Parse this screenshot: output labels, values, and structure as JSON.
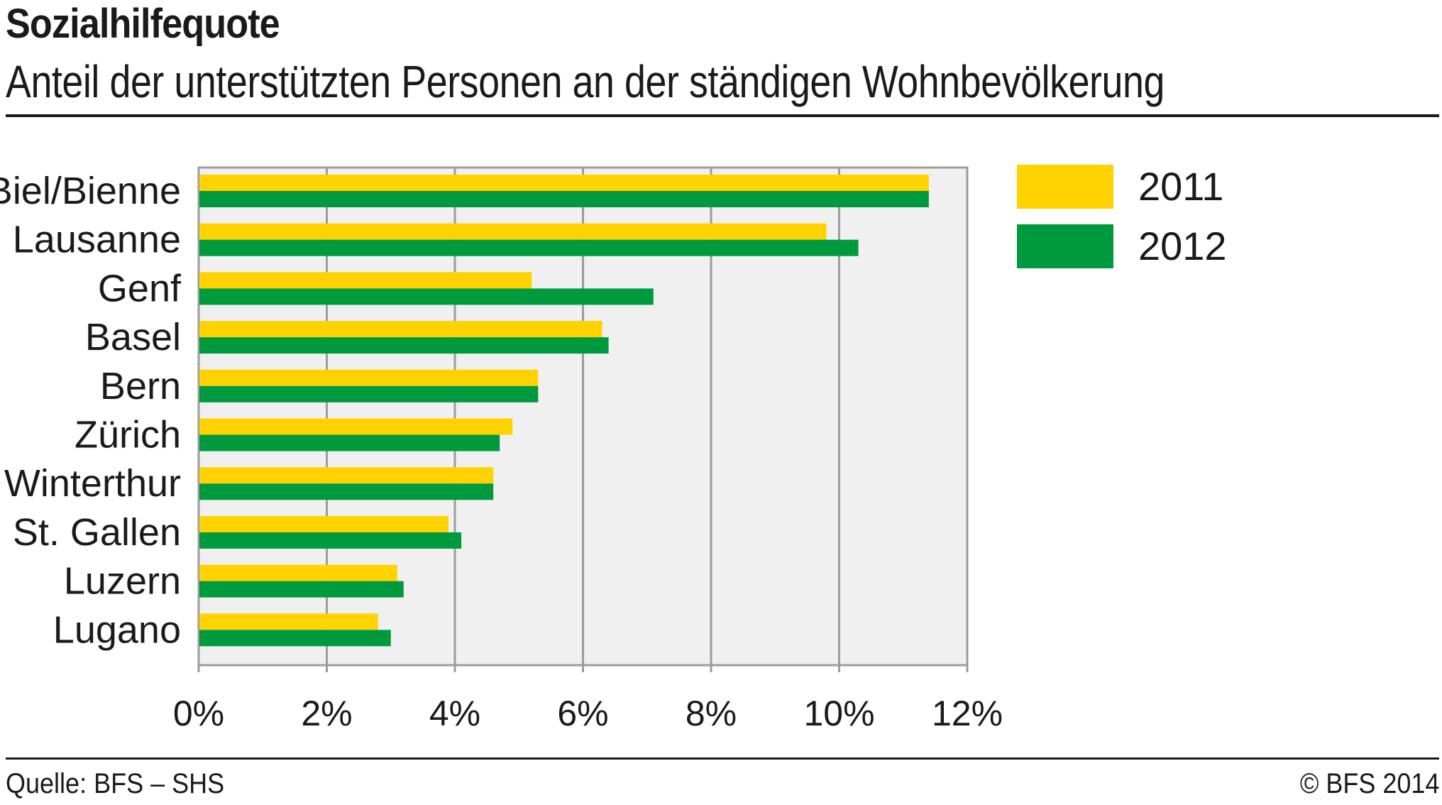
{
  "header": {
    "title": "Sozialhilfequote",
    "subtitle": "Anteil der unterstützten Personen an der ständigen Wohnbevölkerung"
  },
  "footer": {
    "source": "Quelle: BFS – SHS",
    "copyright": "© BFS 2014"
  },
  "colors": {
    "series_2011": "#FFD200",
    "series_2012": "#009A3E",
    "plot_background": "#F0F0F0",
    "gridline": "#9C9C9C"
  },
  "chart_data": {
    "type": "bar",
    "orientation": "horizontal",
    "title": "Sozialhilfequote",
    "subtitle": "Anteil der unterstützten Personen an der ständigen Wohnbevölkerung",
    "categories": [
      "Biel/Bienne",
      "Lausanne",
      "Genf",
      "Basel",
      "Bern",
      "Zürich",
      "Winterthur",
      "St. Gallen",
      "Luzern",
      "Lugano"
    ],
    "series": [
      {
        "name": "2011",
        "values": [
          11.4,
          9.8,
          5.2,
          6.3,
          5.3,
          4.9,
          4.6,
          3.9,
          3.1,
          2.8
        ]
      },
      {
        "name": "2012",
        "values": [
          11.4,
          10.3,
          7.1,
          6.4,
          5.3,
          4.7,
          4.6,
          4.1,
          3.2,
          3.0
        ]
      }
    ],
    "xlim": [
      0,
      12
    ],
    "xticks": [
      0,
      2,
      4,
      6,
      8,
      10,
      12
    ],
    "xtick_labels": [
      "0%",
      "2%",
      "4%",
      "6%",
      "8%",
      "10%",
      "12%"
    ],
    "xlabel": "",
    "ylabel": "",
    "grid": true,
    "legend_position": "top-right"
  }
}
